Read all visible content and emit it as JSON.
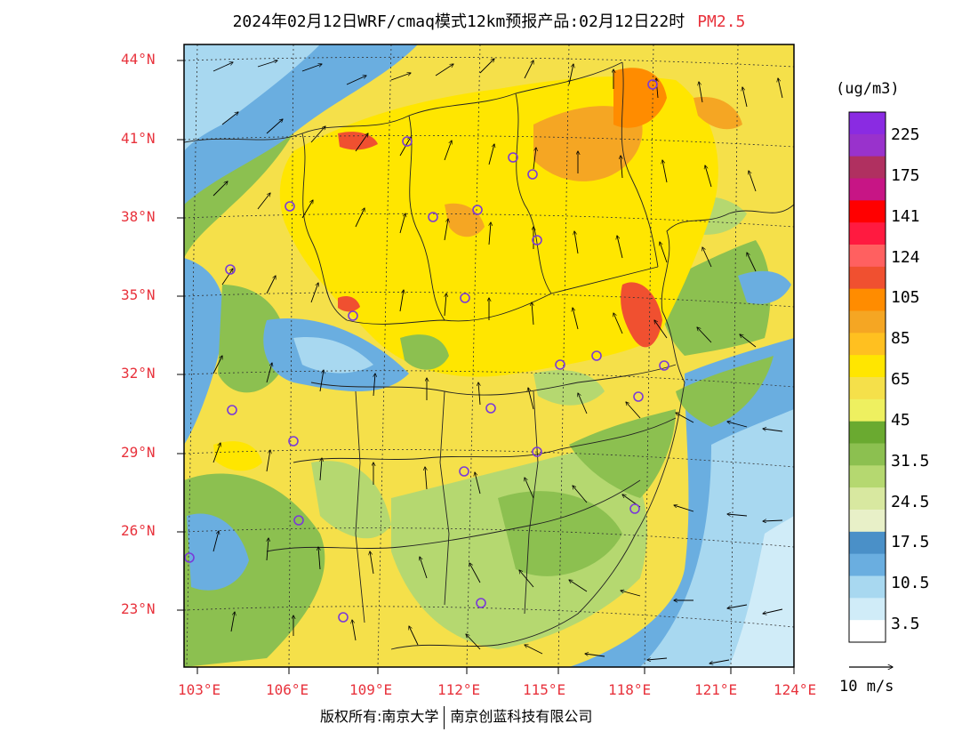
{
  "title": {
    "text": "2024年02月12日WRF/cmaq模式12km预报产品:02月12日22时",
    "pollutant": "PM2.5"
  },
  "axes": {
    "lat_labels": [
      "44°N",
      "41°N",
      "38°N",
      "35°N",
      "32°N",
      "29°N",
      "26°N",
      "23°N"
    ],
    "lon_labels": [
      "103°E",
      "106°E",
      "109°E",
      "112°E",
      "115°E",
      "118°E",
      "121°E",
      "124°E"
    ]
  },
  "legend": {
    "unit": "(ug/m3)",
    "labels": [
      "225",
      "175",
      "141",
      "124",
      "105",
      "85",
      "65",
      "45",
      "31.5",
      "24.5",
      "17.5",
      "10.5",
      "3.5"
    ],
    "colors": [
      "#8a2be2",
      "#9932cc",
      "#b03060",
      "#c71585",
      "#ff0000",
      "#ff1a40",
      "#ff6060",
      "#f05030",
      "#ff8c00",
      "#f5a623",
      "#ffc020",
      "#ffe600",
      "#f5e04a",
      "#eef060",
      "#6aaa30",
      "#8cc050",
      "#b5d870",
      "#d8e8a0",
      "#e8f0c8",
      "#4a90c8",
      "#6aaee0",
      "#a8d8f0",
      "#d0ecf8",
      "#ffffff"
    ]
  },
  "wind_scale": {
    "label": "10 m/s"
  },
  "copyright": {
    "left": "版权所有:南京大学",
    "right": "南京创蓝科技有限公司"
  },
  "map_colors": {
    "frame": "#000000",
    "sea_deep": "#6aaee0",
    "sea_light": "#a8d8f0",
    "yellow": "#ffe600",
    "yellow_pale": "#f5e04a",
    "orange": "#f5a623",
    "green": "#8cc050",
    "green_light": "#b5d870",
    "blue_land": "#6aaee0",
    "station": "#7a3ad8"
  }
}
